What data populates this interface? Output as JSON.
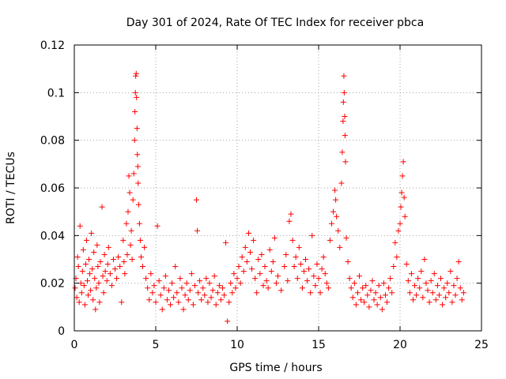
{
  "chart_data": {
    "type": "scatter",
    "title": "Day 301 of 2024, Rate Of TEC Index for receiver pbca",
    "xlabel": "GPS time / hours",
    "ylabel": "ROTI / TECUs",
    "xlim": [
      0,
      25
    ],
    "ylim": [
      0,
      0.12
    ],
    "x_ticks": [
      0,
      5,
      10,
      15,
      20,
      25
    ],
    "x_tick_labels": [
      "0",
      "5",
      "10",
      "15",
      "20",
      "25"
    ],
    "y_ticks": [
      0,
      0.02,
      0.04,
      0.06,
      0.08,
      0.1,
      0.12
    ],
    "y_tick_labels": [
      "0",
      "0.02",
      "0.04",
      "0.06",
      "0.08",
      "0.1",
      "0.12"
    ],
    "grid": true,
    "marker": "+",
    "color": "#ff0000",
    "series": [
      {
        "name": "ROTI",
        "points": [
          [
            0.05,
            0.018
          ],
          [
            0.1,
            0.022
          ],
          [
            0.15,
            0.014
          ],
          [
            0.2,
            0.031
          ],
          [
            0.25,
            0.027
          ],
          [
            0.3,
            0.012
          ],
          [
            0.35,
            0.044
          ],
          [
            0.4,
            0.02
          ],
          [
            0.45,
            0.016
          ],
          [
            0.5,
            0.025
          ],
          [
            0.55,
            0.034
          ],
          [
            0.6,
            0.019
          ],
          [
            0.65,
            0.011
          ],
          [
            0.7,
            0.028
          ],
          [
            0.75,
            0.038
          ],
          [
            0.8,
            0.021
          ],
          [
            0.85,
            0.015
          ],
          [
            0.9,
            0.03
          ],
          [
            0.95,
            0.024
          ],
          [
            1.0,
            0.017
          ],
          [
            1.05,
            0.041
          ],
          [
            1.1,
            0.026
          ],
          [
            1.15,
            0.013
          ],
          [
            1.2,
            0.033
          ],
          [
            1.25,
            0.022
          ],
          [
            1.3,
            0.009
          ],
          [
            1.35,
            0.018
          ],
          [
            1.4,
            0.036
          ],
          [
            1.45,
            0.027
          ],
          [
            1.5,
            0.02
          ],
          [
            1.55,
            0.012
          ],
          [
            1.6,
            0.029
          ],
          [
            1.7,
            0.052
          ],
          [
            1.75,
            0.023
          ],
          [
            1.8,
            0.016
          ],
          [
            1.85,
            0.032
          ],
          [
            1.9,
            0.025
          ],
          [
            2.0,
            0.021
          ],
          [
            2.05,
            0.028
          ],
          [
            2.1,
            0.035
          ],
          [
            2.2,
            0.024
          ],
          [
            2.3,
            0.019
          ],
          [
            2.4,
            0.03
          ],
          [
            2.5,
            0.026
          ],
          [
            2.6,
            0.022
          ],
          [
            2.7,
            0.031
          ],
          [
            2.8,
            0.027
          ],
          [
            2.9,
            0.012
          ],
          [
            3.0,
            0.038
          ],
          [
            3.05,
            0.029
          ],
          [
            3.1,
            0.024
          ],
          [
            3.2,
            0.045
          ],
          [
            3.25,
            0.032
          ],
          [
            3.3,
            0.05
          ],
          [
            3.35,
            0.065
          ],
          [
            3.4,
            0.058
          ],
          [
            3.45,
            0.036
          ],
          [
            3.5,
            0.042
          ],
          [
            3.55,
            0.03
          ],
          [
            3.6,
            0.055
          ],
          [
            3.65,
            0.066
          ],
          [
            3.7,
            0.08
          ],
          [
            3.72,
            0.092
          ],
          [
            3.75,
            0.1
          ],
          [
            3.77,
            0.107
          ],
          [
            3.8,
            0.108
          ],
          [
            3.82,
            0.098
          ],
          [
            3.85,
            0.085
          ],
          [
            3.87,
            0.074
          ],
          [
            3.9,
            0.069
          ],
          [
            3.92,
            0.062
          ],
          [
            3.95,
            0.053
          ],
          [
            4.0,
            0.045
          ],
          [
            4.05,
            0.038
          ],
          [
            4.1,
            0.031
          ],
          [
            4.2,
            0.027
          ],
          [
            4.3,
            0.035
          ],
          [
            4.4,
            0.022
          ],
          [
            4.5,
            0.018
          ],
          [
            4.6,
            0.013
          ],
          [
            4.7,
            0.024
          ],
          [
            4.8,
            0.016
          ],
          [
            4.9,
            0.019
          ],
          [
            5.0,
            0.012
          ],
          [
            5.1,
            0.044
          ],
          [
            5.2,
            0.021
          ],
          [
            5.3,
            0.015
          ],
          [
            5.4,
            0.009
          ],
          [
            5.5,
            0.018
          ],
          [
            5.6,
            0.023
          ],
          [
            5.7,
            0.013
          ],
          [
            5.8,
            0.017
          ],
          [
            5.9,
            0.011
          ],
          [
            6.0,
            0.02
          ],
          [
            6.1,
            0.014
          ],
          [
            6.2,
            0.027
          ],
          [
            6.3,
            0.016
          ],
          [
            6.4,
            0.012
          ],
          [
            6.5,
            0.022
          ],
          [
            6.6,
            0.018
          ],
          [
            6.7,
            0.009
          ],
          [
            6.8,
            0.015
          ],
          [
            6.9,
            0.02
          ],
          [
            7.0,
            0.013
          ],
          [
            7.1,
            0.017
          ],
          [
            7.2,
            0.024
          ],
          [
            7.3,
            0.011
          ],
          [
            7.4,
            0.019
          ],
          [
            7.5,
            0.055
          ],
          [
            7.55,
            0.042
          ],
          [
            7.6,
            0.016
          ],
          [
            7.7,
            0.021
          ],
          [
            7.8,
            0.013
          ],
          [
            7.9,
            0.018
          ],
          [
            8.0,
            0.015
          ],
          [
            8.1,
            0.022
          ],
          [
            8.2,
            0.012
          ],
          [
            8.3,
            0.02
          ],
          [
            8.4,
            0.014
          ],
          [
            8.5,
            0.017
          ],
          [
            8.6,
            0.023
          ],
          [
            8.7,
            0.011
          ],
          [
            8.8,
            0.016
          ],
          [
            8.9,
            0.019
          ],
          [
            9.0,
            0.013
          ],
          [
            9.1,
            0.018
          ],
          [
            9.2,
            0.015
          ],
          [
            9.3,
            0.037
          ],
          [
            9.4,
            0.004
          ],
          [
            9.5,
            0.012
          ],
          [
            9.6,
            0.02
          ],
          [
            9.7,
            0.016
          ],
          [
            9.8,
            0.024
          ],
          [
            9.9,
            0.018
          ],
          [
            10.0,
            0.022
          ],
          [
            10.1,
            0.027
          ],
          [
            10.2,
            0.02
          ],
          [
            10.3,
            0.031
          ],
          [
            10.4,
            0.025
          ],
          [
            10.5,
            0.035
          ],
          [
            10.6,
            0.029
          ],
          [
            10.7,
            0.041
          ],
          [
            10.8,
            0.033
          ],
          [
            10.9,
            0.026
          ],
          [
            11.0,
            0.038
          ],
          [
            11.1,
            0.022
          ],
          [
            11.2,
            0.016
          ],
          [
            11.3,
            0.03
          ],
          [
            11.4,
            0.024
          ],
          [
            11.5,
            0.032
          ],
          [
            11.6,
            0.019
          ],
          [
            11.7,
            0.027
          ],
          [
            11.8,
            0.021
          ],
          [
            11.9,
            0.018
          ],
          [
            12.0,
            0.034
          ],
          [
            12.1,
            0.025
          ],
          [
            12.2,
            0.029
          ],
          [
            12.3,
            0.039
          ],
          [
            12.4,
            0.02
          ],
          [
            12.5,
            0.023
          ],
          [
            12.7,
            0.017
          ],
          [
            12.9,
            0.027
          ],
          [
            13.0,
            0.032
          ],
          [
            13.1,
            0.021
          ],
          [
            13.2,
            0.046
          ],
          [
            13.3,
            0.049
          ],
          [
            13.4,
            0.038
          ],
          [
            13.5,
            0.027
          ],
          [
            13.6,
            0.031
          ],
          [
            13.7,
            0.022
          ],
          [
            13.8,
            0.035
          ],
          [
            13.9,
            0.028
          ],
          [
            14.0,
            0.018
          ],
          [
            14.1,
            0.025
          ],
          [
            14.2,
            0.03
          ],
          [
            14.3,
            0.021
          ],
          [
            14.4,
            0.026
          ],
          [
            14.5,
            0.016
          ],
          [
            14.6,
            0.04
          ],
          [
            14.7,
            0.023
          ],
          [
            14.8,
            0.019
          ],
          [
            14.9,
            0.028
          ],
          [
            15.0,
            0.022
          ],
          [
            15.1,
            0.016
          ],
          [
            15.2,
            0.026
          ],
          [
            15.3,
            0.031
          ],
          [
            15.4,
            0.024
          ],
          [
            15.5,
            0.02
          ],
          [
            15.6,
            0.018
          ],
          [
            15.7,
            0.038
          ],
          [
            15.8,
            0.045
          ],
          [
            15.9,
            0.05
          ],
          [
            16.0,
            0.059
          ],
          [
            16.05,
            0.055
          ],
          [
            16.1,
            0.048
          ],
          [
            16.2,
            0.042
          ],
          [
            16.3,
            0.035
          ],
          [
            16.4,
            0.062
          ],
          [
            16.45,
            0.075
          ],
          [
            16.5,
            0.088
          ],
          [
            16.52,
            0.096
          ],
          [
            16.55,
            0.107
          ],
          [
            16.57,
            0.1
          ],
          [
            16.6,
            0.09
          ],
          [
            16.62,
            0.082
          ],
          [
            16.65,
            0.071
          ],
          [
            16.7,
            0.039
          ],
          [
            16.8,
            0.029
          ],
          [
            16.9,
            0.022
          ],
          [
            17.0,
            0.018
          ],
          [
            17.1,
            0.014
          ],
          [
            17.2,
            0.02
          ],
          [
            17.3,
            0.011
          ],
          [
            17.4,
            0.016
          ],
          [
            17.5,
            0.023
          ],
          [
            17.6,
            0.013
          ],
          [
            17.7,
            0.018
          ],
          [
            17.8,
            0.012
          ],
          [
            17.9,
            0.019
          ],
          [
            18.0,
            0.015
          ],
          [
            18.1,
            0.01
          ],
          [
            18.2,
            0.017
          ],
          [
            18.3,
            0.021
          ],
          [
            18.4,
            0.013
          ],
          [
            18.5,
            0.016
          ],
          [
            18.6,
            0.011
          ],
          [
            18.7,
            0.019
          ],
          [
            18.8,
            0.014
          ],
          [
            18.9,
            0.009
          ],
          [
            19.0,
            0.02
          ],
          [
            19.1,
            0.015
          ],
          [
            19.2,
            0.012
          ],
          [
            19.3,
            0.018
          ],
          [
            19.4,
            0.022
          ],
          [
            19.5,
            0.016
          ],
          [
            19.6,
            0.027
          ],
          [
            19.7,
            0.037
          ],
          [
            19.8,
            0.031
          ],
          [
            19.9,
            0.042
          ],
          [
            20.0,
            0.045
          ],
          [
            20.05,
            0.052
          ],
          [
            20.1,
            0.058
          ],
          [
            20.15,
            0.065
          ],
          [
            20.2,
            0.071
          ],
          [
            20.25,
            0.056
          ],
          [
            20.3,
            0.048
          ],
          [
            20.4,
            0.028
          ],
          [
            20.5,
            0.021
          ],
          [
            20.6,
            0.016
          ],
          [
            20.7,
            0.024
          ],
          [
            20.8,
            0.013
          ],
          [
            20.9,
            0.019
          ],
          [
            21.0,
            0.015
          ],
          [
            21.1,
            0.022
          ],
          [
            21.2,
            0.018
          ],
          [
            21.3,
            0.025
          ],
          [
            21.4,
            0.014
          ],
          [
            21.5,
            0.03
          ],
          [
            21.6,
            0.02
          ],
          [
            21.7,
            0.017
          ],
          [
            21.8,
            0.012
          ],
          [
            21.9,
            0.021
          ],
          [
            22.0,
            0.016
          ],
          [
            22.1,
            0.024
          ],
          [
            22.2,
            0.013
          ],
          [
            22.3,
            0.019
          ],
          [
            22.4,
            0.015
          ],
          [
            22.5,
            0.022
          ],
          [
            22.6,
            0.011
          ],
          [
            22.7,
            0.018
          ],
          [
            22.8,
            0.014
          ],
          [
            22.9,
            0.02
          ],
          [
            23.0,
            0.016
          ],
          [
            23.1,
            0.025
          ],
          [
            23.2,
            0.012
          ],
          [
            23.3,
            0.019
          ],
          [
            23.4,
            0.015
          ],
          [
            23.5,
            0.022
          ],
          [
            23.6,
            0.029
          ],
          [
            23.7,
            0.018
          ],
          [
            23.8,
            0.013
          ],
          [
            23.9,
            0.016
          ]
        ]
      }
    ]
  }
}
